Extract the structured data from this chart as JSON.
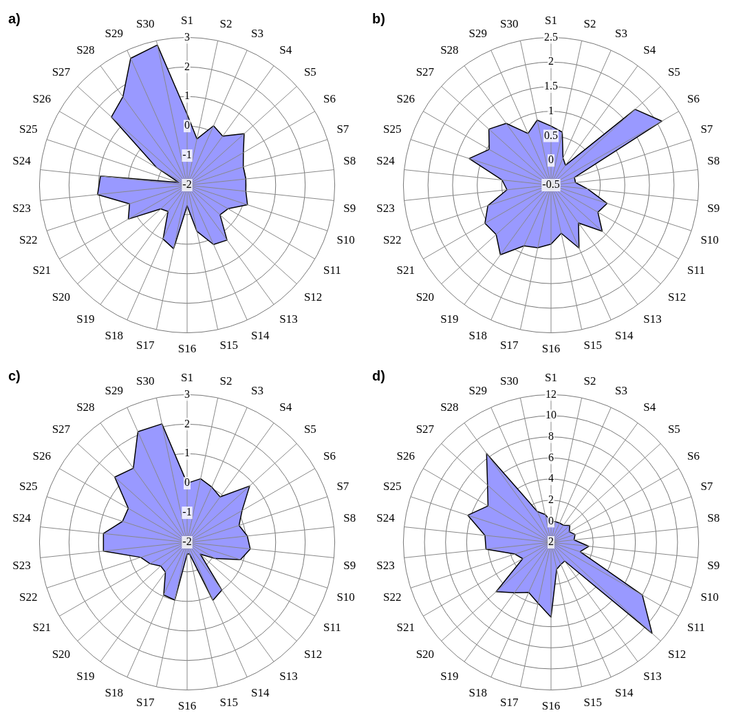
{
  "chart_data": [
    {
      "type": "radar",
      "title": "a)",
      "categories": [
        "S1",
        "S2",
        "S3",
        "S4",
        "S5",
        "S6",
        "S7",
        "S8",
        "S9",
        "S10",
        "S11",
        "S12",
        "S13",
        "S14",
        "S15",
        "S16",
        "S17",
        "S18",
        "S19",
        "S20",
        "S21",
        "S22",
        "S23",
        "S24",
        "S25",
        "S26",
        "S27",
        "S28",
        "S29",
        "S30"
      ],
      "ylim": [
        -2,
        3
      ],
      "yticks": [
        -2,
        -1,
        0,
        1,
        2,
        3
      ],
      "marker": "none",
      "grid": true,
      "series": [
        {
          "color": "#9999ff",
          "values": [
            0.4,
            -0.4,
            0.2,
            0.05,
            0.6,
            0.2,
            0.0,
            0.0,
            0.0,
            0.15,
            -0.4,
            -0.5,
            0.3,
            0.2,
            -0.4,
            -1.3,
            0.2,
            0.0,
            -0.9,
            -0.8,
            0.3,
            0.05,
            1.05,
            0.95,
            -1.7,
            -0.8,
            1.45,
            1.7,
            2.7,
            2.85
          ]
        }
      ]
    },
    {
      "type": "radar",
      "title": "b)",
      "categories": [
        "S1",
        "S2",
        "S3",
        "S4",
        "S5",
        "S6",
        "S7",
        "S8",
        "S9",
        "S10",
        "S11",
        "S12",
        "S13",
        "S14",
        "S15",
        "S16",
        "S17",
        "S18",
        "S19",
        "S20",
        "S21",
        "S22",
        "S23",
        "S24",
        "S25",
        "S26",
        "S27",
        "S28",
        "S29",
        "S30"
      ],
      "ylim": [
        -0.5,
        2.5
      ],
      "yticks": [
        -0.5,
        0,
        0.5,
        1,
        1.5,
        2,
        2.5
      ],
      "marker": "none",
      "grid": true,
      "series": [
        {
          "color": "#9999ff",
          "values": [
            0.7,
            0.6,
            0.1,
            0.0,
            1.8,
            2.1,
            0.0,
            0.0,
            0.25,
            0.7,
            0.6,
            0.9,
            0.45,
            0.9,
            0.5,
            0.7,
            0.8,
            0.85,
            1.25,
            1.0,
            1.05,
            0.85,
            0.4,
            0.5,
            1.25,
            0.95,
            1.2,
            1.05,
            0.65,
            0.85
          ]
        }
      ]
    },
    {
      "type": "radar",
      "title": "c)",
      "categories": [
        "S1",
        "S2",
        "S3",
        "S4",
        "S5",
        "S6",
        "S7",
        "S8",
        "S9",
        "S10",
        "S11",
        "S12",
        "S13",
        "S14",
        "S15",
        "S16",
        "S17",
        "S18",
        "S19",
        "S20",
        "S21",
        "S22",
        "S23",
        "S24",
        "S25",
        "S26",
        "S27",
        "S28",
        "S29",
        "S30"
      ],
      "ylim": [
        -2,
        3
      ],
      "yticks": [
        -2,
        -1,
        0,
        1,
        2,
        3
      ],
      "marker": "none",
      "grid": true,
      "series": [
        {
          "color": "#9999ff",
          "values": [
            0.0,
            0.2,
            0.05,
            -0.1,
            0.85,
            0.15,
            -0.15,
            0.05,
            0.15,
            -0.1,
            -0.9,
            -1.4,
            0.0,
            0.15,
            -1.6,
            -1.6,
            0.0,
            -0.05,
            -0.75,
            -0.8,
            -0.55,
            -0.35,
            0.85,
            0.85,
            0.3,
            0.3,
            1.3,
            1.1,
            2.1,
            2.1
          ]
        }
      ]
    },
    {
      "type": "radar",
      "title": "d)",
      "categories": [
        "S1",
        "S2",
        "S3",
        "S4",
        "S5",
        "S6",
        "S7",
        "S8",
        "S9",
        "S10",
        "S11",
        "S12",
        "S13",
        "S14",
        "S15",
        "S16",
        "S17",
        "S18",
        "S19",
        "S20",
        "S21",
        "S22",
        "S23",
        "S24",
        "S25",
        "S26",
        "S27",
        "S28",
        "S29",
        "S30"
      ],
      "ylim": [
        -2,
        12
      ],
      "yticks": [
        {
          "value": -2,
          "label": "2"
        },
        0,
        2,
        4,
        6,
        8,
        10,
        12
      ],
      "marker": "none",
      "grid": true,
      "series": [
        {
          "color": "#9999ff",
          "values": [
            0.0,
            0.0,
            0.0,
            0.0,
            0.4,
            0.0,
            0.4,
            0.2,
            1.6,
            0.9,
            8.0,
            10.9,
            0.2,
            0.3,
            0.6,
            5.1,
            3.9,
            3.2,
            3.9,
            5.0,
            1.1,
            1.6,
            4.2,
            4.3,
            6.3,
            4.9,
            6.1,
            8.4,
            1.2,
            0.7
          ]
        }
      ]
    }
  ]
}
